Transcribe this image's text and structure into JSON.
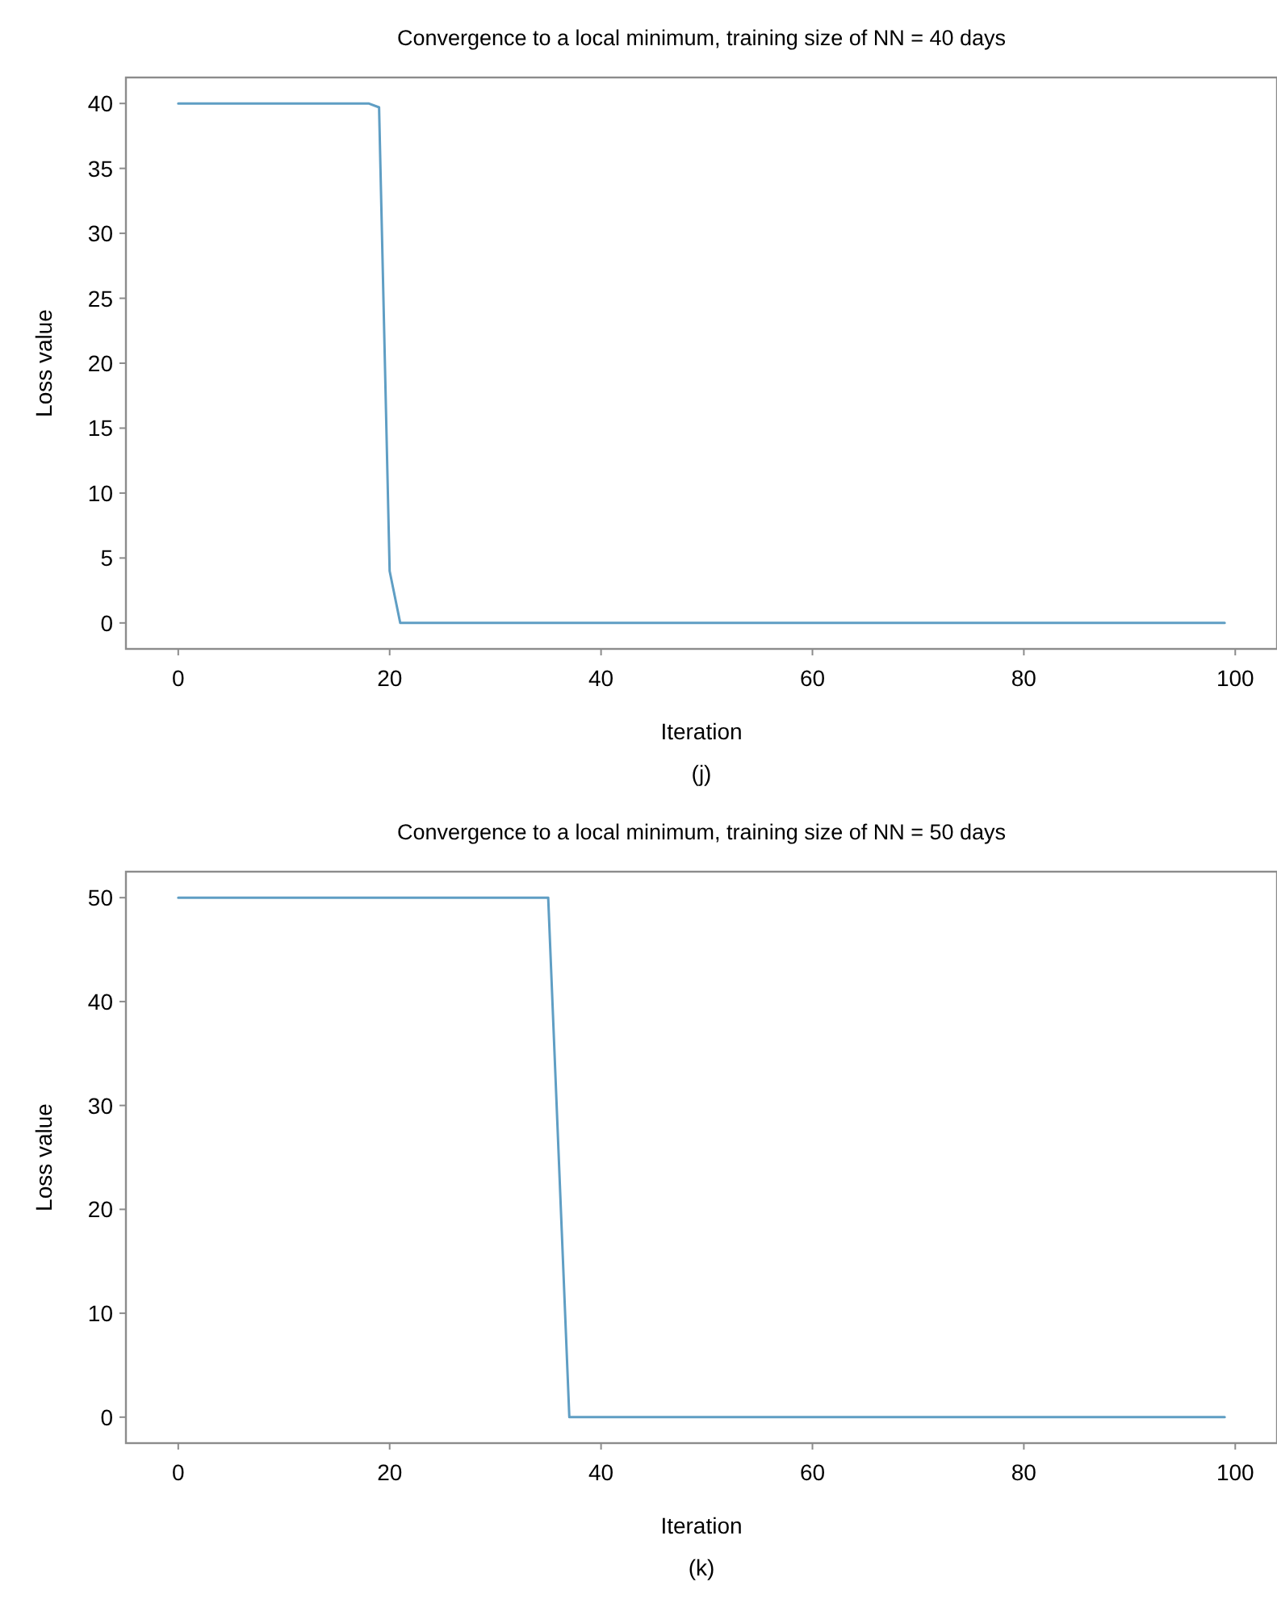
{
  "chart_data": [
    {
      "type": "line",
      "title": "Convergence to a local minimum, training size of NN = 40 days",
      "xlabel": "Iteration",
      "ylabel": "Loss value",
      "annotations": [
        "(j)"
      ],
      "x": [
        0,
        18,
        19,
        20,
        21,
        99
      ],
      "series": [
        {
          "color": "#5f9ec4",
          "values": [
            40,
            40,
            39.7,
            4,
            0,
            0
          ]
        }
      ],
      "xlim": [
        -4.95,
        103.95
      ],
      "xticks": [
        0,
        20,
        40,
        60,
        80,
        100
      ],
      "ylim": [
        -2,
        42
      ],
      "yticks": [
        0,
        5,
        10,
        15,
        20,
        25,
        30,
        35,
        40
      ],
      "grid": false,
      "marker": "none",
      "line_style": "solid"
    },
    {
      "type": "line",
      "title": "Convergence to a local minimum, training size of NN = 50 days",
      "xlabel": "Iteration",
      "ylabel": "Loss value",
      "annotations": [
        "(k)"
      ],
      "x": [
        0,
        35,
        37,
        99
      ],
      "series": [
        {
          "color": "#5f9ec4",
          "values": [
            50,
            50,
            0,
            0
          ]
        }
      ],
      "xlim": [
        -4.95,
        103.95
      ],
      "xticks": [
        0,
        20,
        40,
        60,
        80,
        100
      ],
      "ylim": [
        -2.5,
        52.5
      ],
      "yticks": [
        0,
        10,
        20,
        30,
        40,
        50
      ],
      "grid": false,
      "marker": "none",
      "line_style": "solid"
    }
  ]
}
